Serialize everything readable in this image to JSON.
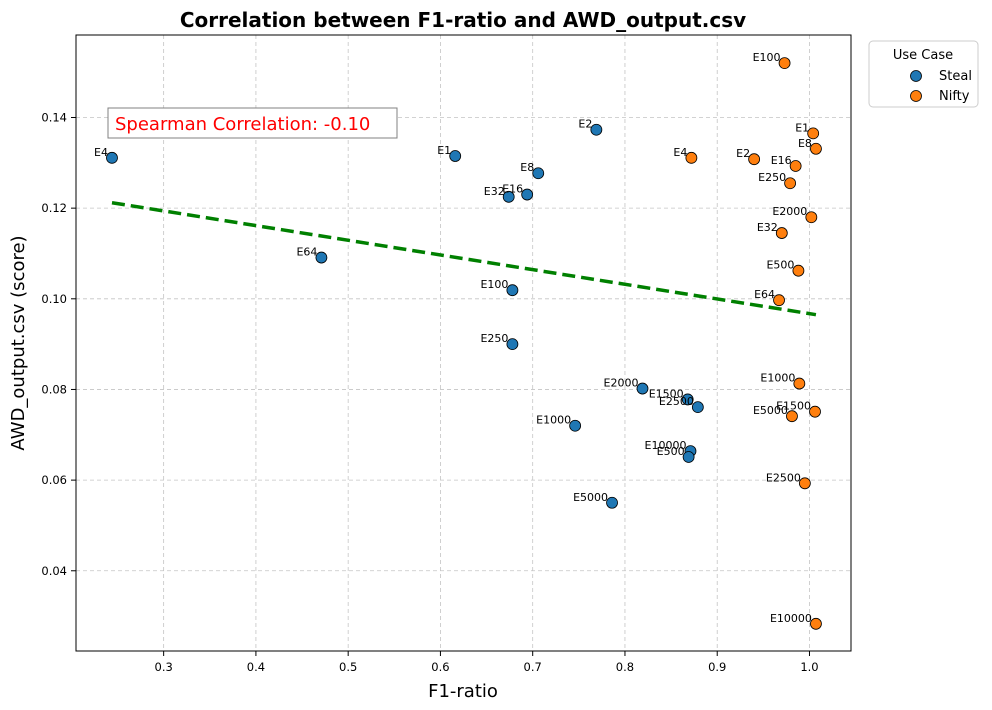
{
  "chart_data": {
    "type": "scatter",
    "title": "Correlation between F1-ratio and AWD_output.csv",
    "xlabel": "F1-ratio",
    "ylabel": "AWD_output.csv (score)",
    "xlim": [
      0.205,
      1.045
    ],
    "ylim": [
      0.0223,
      0.1582
    ],
    "xticks": [
      0.3,
      0.4,
      0.5,
      0.6,
      0.7,
      0.8,
      0.9,
      1.0
    ],
    "xtick_labels": [
      "0.3",
      "0.4",
      "0.5",
      "0.6",
      "0.7",
      "0.8",
      "0.9",
      "1.0"
    ],
    "yticks": [
      0.04,
      0.06,
      0.08,
      0.1,
      0.12,
      0.14
    ],
    "ytick_labels": [
      "0.04",
      "0.06",
      "0.08",
      "0.10",
      "0.12",
      "0.14"
    ],
    "grid": true,
    "legend": {
      "title": "Use Case",
      "placement": "outside-top-right"
    },
    "annotation": {
      "text": "Spearman Correlation: -0.10",
      "color": "#ff0000"
    },
    "trend_line": {
      "x": [
        0.244,
        1.007
      ],
      "y": [
        0.1212,
        0.0965
      ],
      "color": "#008000",
      "style": "dashed"
    },
    "series": [
      {
        "name": "Steal",
        "color": "#1f77b4",
        "points": [
          {
            "label": "E4",
            "x": 0.244,
            "y": 0.1311
          },
          {
            "label": "E1",
            "x": 0.616,
            "y": 0.1315
          },
          {
            "label": "E2",
            "x": 0.769,
            "y": 0.1373
          },
          {
            "label": "E8",
            "x": 0.706,
            "y": 0.1277
          },
          {
            "label": "E32",
            "x": 0.674,
            "y": 0.1225
          },
          {
            "label": "E16",
            "x": 0.694,
            "y": 0.123
          },
          {
            "label": "E64",
            "x": 0.471,
            "y": 0.1091
          },
          {
            "label": "E100",
            "x": 0.678,
            "y": 0.1019
          },
          {
            "label": "E250",
            "x": 0.678,
            "y": 0.09
          },
          {
            "label": "E2000",
            "x": 0.819,
            "y": 0.0802
          },
          {
            "label": "E1500",
            "x": 0.868,
            "y": 0.0778
          },
          {
            "label": "E2500",
            "x": 0.879,
            "y": 0.0761
          },
          {
            "label": "E1000",
            "x": 0.746,
            "y": 0.072
          },
          {
            "label": "E10000",
            "x": 0.871,
            "y": 0.0664
          },
          {
            "label": "E500",
            "x": 0.869,
            "y": 0.0651
          },
          {
            "label": "E5000",
            "x": 0.786,
            "y": 0.055
          }
        ]
      },
      {
        "name": "Nifty",
        "color": "#ff7f0e",
        "points": [
          {
            "label": "E100",
            "x": 0.973,
            "y": 0.152
          },
          {
            "label": "E1",
            "x": 1.004,
            "y": 0.1365
          },
          {
            "label": "E8",
            "x": 1.007,
            "y": 0.1331
          },
          {
            "label": "E4",
            "x": 0.872,
            "y": 0.1311
          },
          {
            "label": "E2",
            "x": 0.94,
            "y": 0.1308
          },
          {
            "label": "E16",
            "x": 0.985,
            "y": 0.1293
          },
          {
            "label": "E250",
            "x": 0.979,
            "y": 0.1255
          },
          {
            "label": "E2000",
            "x": 1.002,
            "y": 0.118
          },
          {
            "label": "E32",
            "x": 0.97,
            "y": 0.1145
          },
          {
            "label": "E500",
            "x": 0.988,
            "y": 0.1062
          },
          {
            "label": "E64",
            "x": 0.967,
            "y": 0.0997
          },
          {
            "label": "E1000",
            "x": 0.989,
            "y": 0.0813
          },
          {
            "label": "E1500",
            "x": 1.006,
            "y": 0.0751
          },
          {
            "label": "E5000",
            "x": 0.981,
            "y": 0.0741
          },
          {
            "label": "E2500",
            "x": 0.995,
            "y": 0.0593
          },
          {
            "label": "E10000",
            "x": 1.007,
            "y": 0.0283
          }
        ]
      }
    ]
  }
}
